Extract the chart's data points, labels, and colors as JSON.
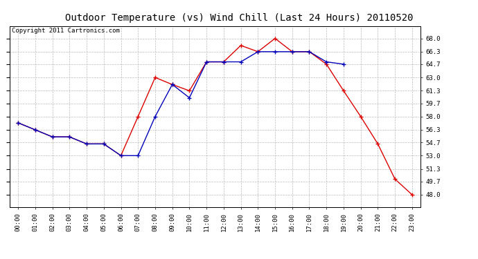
{
  "title": "Outdoor Temperature (vs) Wind Chill (Last 24 Hours) 20110520",
  "copyright": "Copyright 2011 Cartronics.com",
  "x_labels": [
    "00:00",
    "01:00",
    "02:00",
    "03:00",
    "04:00",
    "05:00",
    "06:00",
    "07:00",
    "08:00",
    "09:00",
    "10:00",
    "11:00",
    "12:00",
    "13:00",
    "14:00",
    "15:00",
    "16:00",
    "17:00",
    "18:00",
    "19:00",
    "20:00",
    "21:00",
    "22:00",
    "23:00"
  ],
  "temp_data": [
    57.2,
    56.3,
    55.4,
    55.4,
    54.5,
    54.5,
    53.0,
    58.0,
    63.0,
    62.1,
    61.3,
    65.0,
    65.0,
    67.1,
    66.3,
    68.0,
    66.3,
    66.3,
    64.7,
    61.3,
    58.0,
    54.5,
    50.0,
    48.0
  ],
  "wind_chill_data": [
    57.2,
    56.3,
    55.4,
    55.4,
    54.5,
    54.5,
    53.0,
    53.0,
    58.0,
    62.1,
    60.4,
    65.0,
    65.0,
    65.0,
    66.3,
    66.3,
    66.3,
    66.3,
    65.0,
    64.7,
    null,
    null,
    null,
    null
  ],
  "temp_color": "#dd0000",
  "wind_chill_color": "#0000bb",
  "bg_color": "#ffffff",
  "grid_color": "#bbbbbb",
  "ylim_min": 46.4,
  "ylim_max": 69.6,
  "y_ticks": [
    48.0,
    49.7,
    51.3,
    53.0,
    54.7,
    56.3,
    58.0,
    59.7,
    61.3,
    63.0,
    64.7,
    66.3,
    68.0
  ],
  "title_fontsize": 10,
  "copyright_fontsize": 6.5,
  "tick_fontsize": 6.5
}
